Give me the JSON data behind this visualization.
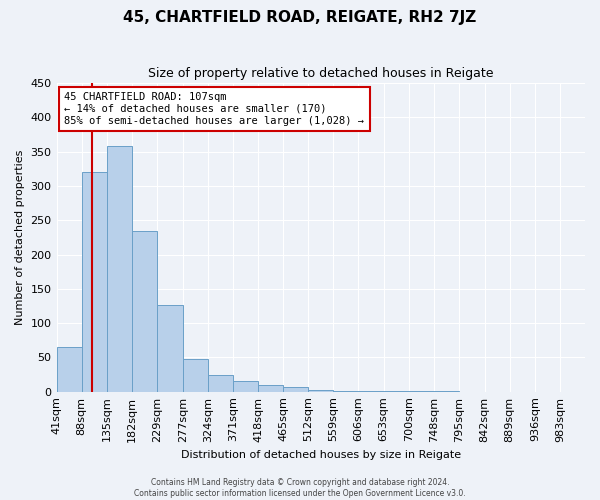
{
  "title": "45, CHARTFIELD ROAD, REIGATE, RH2 7JZ",
  "subtitle": "Size of property relative to detached houses in Reigate",
  "xlabel": "Distribution of detached houses by size in Reigate",
  "ylabel": "Number of detached properties",
  "bar_values": [
    65,
    320,
    358,
    235,
    126,
    47,
    25,
    15,
    10,
    7,
    2,
    1,
    1,
    1,
    1,
    1,
    0,
    0,
    0,
    0
  ],
  "bin_labels": [
    "41sqm",
    "88sqm",
    "135sqm",
    "182sqm",
    "229sqm",
    "277sqm",
    "324sqm",
    "371sqm",
    "418sqm",
    "465sqm",
    "512sqm",
    "559sqm",
    "606sqm",
    "653sqm",
    "700sqm",
    "748sqm",
    "795sqm",
    "842sqm",
    "889sqm",
    "936sqm",
    "983sqm"
  ],
  "bar_color": "#b8d0ea",
  "bar_edge_color": "#6aa0c8",
  "bin_edges": [
    41,
    88,
    135,
    182,
    229,
    277,
    324,
    371,
    418,
    465,
    512,
    559,
    606,
    653,
    700,
    748,
    795,
    842,
    889,
    936,
    983
  ],
  "ylim": [
    0,
    450
  ],
  "yticks": [
    0,
    50,
    100,
    150,
    200,
    250,
    300,
    350,
    400,
    450
  ],
  "annotation_line1": "45 CHARTFIELD ROAD: 107sqm",
  "annotation_line2": "← 14% of detached houses are smaller (170)",
  "annotation_line3": "85% of semi-detached houses are larger (1,028) →",
  "footer1": "Contains HM Land Registry data © Crown copyright and database right 2024.",
  "footer2": "Contains public sector information licensed under the Open Government Licence v3.0.",
  "background_color": "#eef2f8",
  "grid_color": "#ffffff",
  "annotation_box_color": "#ffffff",
  "annotation_box_edge": "#cc0000",
  "vline_color": "#cc0000",
  "vline_x": 107
}
